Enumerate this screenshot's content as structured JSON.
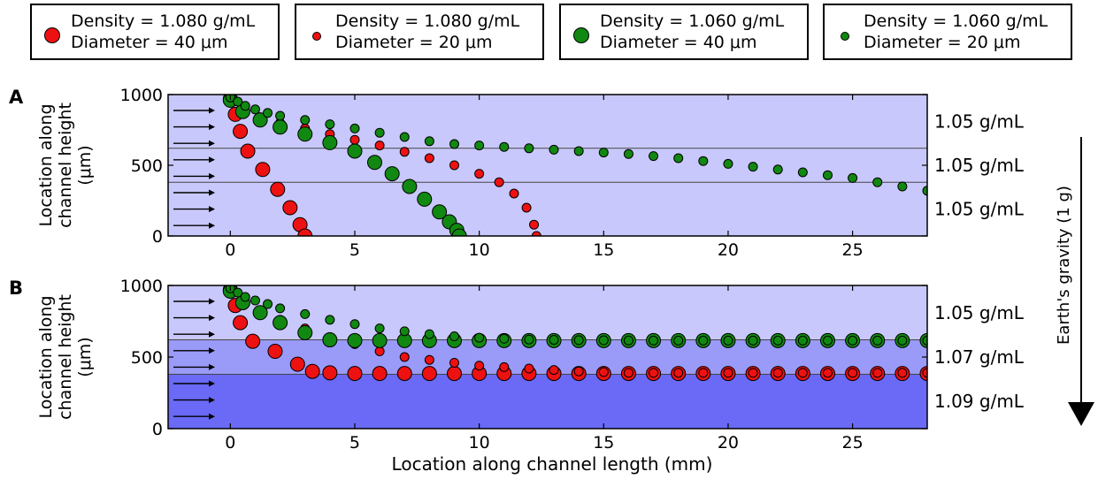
{
  "legend": [
    {
      "line1": "Density = 1.080 g/mL",
      "line2": "Diameter = 40 μm",
      "color": "#ee1111",
      "size": "large"
    },
    {
      "line1": "Density = 1.080 g/mL",
      "line2": "Diameter = 20 μm",
      "color": "#ee1111",
      "size": "small"
    },
    {
      "line1": "Density = 1.060 g/mL",
      "line2": "Diameter = 40 μm",
      "color": "#118811",
      "size": "large"
    },
    {
      "line1": "Density = 1.060 g/mL",
      "line2": "Diameter = 20 μm",
      "color": "#118811",
      "size": "small"
    }
  ],
  "gravity_label": "Earth's gravity (1 g)",
  "chart_data": [
    {
      "type": "scatter",
      "panel_label": "A",
      "xlabel": "",
      "ylabel": "Location along channel height (μm)",
      "xlim": [
        -2.5,
        28
      ],
      "ylim": [
        0,
        1000
      ],
      "x_ticks": [
        0,
        5,
        10,
        15,
        20,
        25
      ],
      "y_ticks": [
        0,
        500,
        1000
      ],
      "layers": [
        {
          "from": 620,
          "to": 1000,
          "label": "1.05 g/mL",
          "color": "#c8c8fc"
        },
        {
          "from": 380,
          "to": 620,
          "label": "1.05 g/mL",
          "color": "#c8c8fc"
        },
        {
          "from": 0,
          "to": 380,
          "label": "1.05 g/mL",
          "color": "#c8c8fc"
        }
      ],
      "boundaries": [
        620,
        380
      ],
      "series": [
        {
          "color": "#ee1111",
          "size": "large",
          "points": [
            [
              0,
              970
            ],
            [
              0.2,
              860
            ],
            [
              0.4,
              740
            ],
            [
              0.7,
              600
            ],
            [
              1.3,
              470
            ],
            [
              1.9,
              330
            ],
            [
              2.4,
              200
            ],
            [
              2.8,
              80
            ],
            [
              3.0,
              0
            ]
          ]
        },
        {
          "color": "#ee1111",
          "size": "small",
          "points": [
            [
              0,
              960
            ],
            [
              0.5,
              880
            ],
            [
              1.2,
              840
            ],
            [
              2,
              800
            ],
            [
              3,
              760
            ],
            [
              4,
              720
            ],
            [
              5,
              680
            ],
            [
              6,
              640
            ],
            [
              7,
              595
            ],
            [
              8,
              550
            ],
            [
              9,
              500
            ],
            [
              10,
              440
            ],
            [
              10.8,
              380
            ],
            [
              11.4,
              300
            ],
            [
              11.9,
              200
            ],
            [
              12.2,
              80
            ],
            [
              12.3,
              0
            ]
          ]
        },
        {
          "color": "#118811",
          "size": "large",
          "points": [
            [
              0,
              960
            ],
            [
              0.5,
              880
            ],
            [
              1.2,
              820
            ],
            [
              2,
              770
            ],
            [
              3,
              720
            ],
            [
              4,
              660
            ],
            [
              5,
              600
            ],
            [
              5.8,
              520
            ],
            [
              6.5,
              440
            ],
            [
              7.2,
              350
            ],
            [
              7.8,
              260
            ],
            [
              8.4,
              170
            ],
            [
              8.8,
              100
            ],
            [
              9.1,
              40
            ],
            [
              9.2,
              0
            ]
          ]
        },
        {
          "color": "#118811",
          "size": "small",
          "points": [
            [
              0,
              980
            ],
            [
              0.3,
              950
            ],
            [
              0.6,
              920
            ],
            [
              1,
              895
            ],
            [
              1.5,
              870
            ],
            [
              2,
              850
            ],
            [
              3,
              820
            ],
            [
              4,
              790
            ],
            [
              5,
              760
            ],
            [
              6,
              730
            ],
            [
              7,
              700
            ],
            [
              8,
              670
            ],
            [
              9,
              650
            ],
            [
              10,
              640
            ],
            [
              11,
              630
            ],
            [
              12,
              620
            ],
            [
              13,
              610
            ],
            [
              14,
              600
            ],
            [
              15,
              590
            ],
            [
              16,
              580
            ],
            [
              17,
              565
            ],
            [
              18,
              550
            ],
            [
              19,
              530
            ],
            [
              20,
              510
            ],
            [
              21,
              490
            ],
            [
              22,
              470
            ],
            [
              23,
              450
            ],
            [
              24,
              430
            ],
            [
              25,
              410
            ],
            [
              26,
              380
            ],
            [
              27,
              350
            ],
            [
              28,
              320
            ]
          ]
        }
      ]
    },
    {
      "type": "scatter",
      "panel_label": "B",
      "xlabel": "Location along channel length (mm)",
      "ylabel": "Location along channel height (μm)",
      "xlim": [
        -2.5,
        28
      ],
      "ylim": [
        0,
        1000
      ],
      "x_ticks": [
        0,
        5,
        10,
        15,
        20,
        25
      ],
      "y_ticks": [
        0,
        500,
        1000
      ],
      "layers": [
        {
          "from": 620,
          "to": 1000,
          "label": "1.05 g/mL",
          "color": "#c8c8fc"
        },
        {
          "from": 380,
          "to": 620,
          "label": "1.07 g/mL",
          "color": "#9a9af8"
        },
        {
          "from": 0,
          "to": 380,
          "label": "1.09 g/mL",
          "color": "#6a6af6"
        }
      ],
      "boundaries": [
        620,
        380
      ],
      "series": [
        {
          "color": "#ee1111",
          "size": "large",
          "points": [
            [
              0,
              970
            ],
            [
              0.2,
              860
            ],
            [
              0.4,
              740
            ],
            [
              0.9,
              610
            ],
            [
              1.8,
              540
            ],
            [
              2.7,
              450
            ],
            [
              3.3,
              400
            ],
            [
              4,
              390
            ],
            [
              5,
              385
            ],
            [
              6,
              385
            ],
            [
              7,
              385
            ],
            [
              8,
              385
            ],
            [
              9,
              385
            ],
            [
              10,
              385
            ],
            [
              11,
              385
            ],
            [
              12,
              385
            ],
            [
              13,
              385
            ],
            [
              14,
              385
            ],
            [
              15,
              385
            ],
            [
              16,
              385
            ],
            [
              17,
              385
            ],
            [
              18,
              385
            ],
            [
              19,
              385
            ],
            [
              20,
              385
            ],
            [
              21,
              385
            ],
            [
              22,
              385
            ],
            [
              23,
              385
            ],
            [
              24,
              385
            ],
            [
              25,
              385
            ],
            [
              26,
              385
            ],
            [
              27,
              385
            ],
            [
              28,
              385
            ]
          ]
        },
        {
          "color": "#ee1111",
          "size": "small",
          "points": [
            [
              0,
              960
            ],
            [
              0.5,
              870
            ],
            [
              1.2,
              810
            ],
            [
              2,
              760
            ],
            [
              3,
              700
            ],
            [
              4,
              640
            ],
            [
              5,
              590
            ],
            [
              6,
              540
            ],
            [
              7,
              500
            ],
            [
              8,
              480
            ],
            [
              9,
              460
            ],
            [
              10,
              440
            ],
            [
              11,
              430
            ],
            [
              12,
              420
            ],
            [
              13,
              410
            ],
            [
              14,
              400
            ],
            [
              15,
              395
            ],
            [
              16,
              390
            ],
            [
              17,
              390
            ],
            [
              18,
              390
            ],
            [
              19,
              390
            ],
            [
              20,
              390
            ],
            [
              21,
              390
            ],
            [
              22,
              390
            ],
            [
              23,
              390
            ],
            [
              24,
              390
            ],
            [
              25,
              390
            ],
            [
              26,
              390
            ],
            [
              27,
              390
            ],
            [
              28,
              390
            ]
          ]
        },
        {
          "color": "#118811",
          "size": "large",
          "points": [
            [
              0,
              960
            ],
            [
              0.5,
              880
            ],
            [
              1.2,
              810
            ],
            [
              2,
              740
            ],
            [
              3,
              670
            ],
            [
              4,
              620
            ],
            [
              5,
              615
            ],
            [
              6,
              615
            ],
            [
              7,
              615
            ],
            [
              8,
              615
            ],
            [
              9,
              615
            ],
            [
              10,
              615
            ],
            [
              11,
              615
            ],
            [
              12,
              615
            ],
            [
              13,
              615
            ],
            [
              14,
              615
            ],
            [
              15,
              615
            ],
            [
              16,
              615
            ],
            [
              17,
              615
            ],
            [
              18,
              615
            ],
            [
              19,
              615
            ],
            [
              20,
              615
            ],
            [
              21,
              615
            ],
            [
              22,
              615
            ],
            [
              23,
              615
            ],
            [
              24,
              615
            ],
            [
              25,
              615
            ],
            [
              26,
              615
            ],
            [
              27,
              615
            ],
            [
              28,
              615
            ]
          ]
        },
        {
          "color": "#118811",
          "size": "small",
          "points": [
            [
              0,
              980
            ],
            [
              0.3,
              950
            ],
            [
              0.6,
              920
            ],
            [
              1,
              895
            ],
            [
              1.5,
              870
            ],
            [
              2,
              840
            ],
            [
              3,
              800
            ],
            [
              4,
              760
            ],
            [
              5,
              730
            ],
            [
              6,
              700
            ],
            [
              7,
              680
            ],
            [
              8,
              660
            ],
            [
              9,
              645
            ],
            [
              10,
              635
            ],
            [
              11,
              628
            ],
            [
              12,
              622
            ],
            [
              13,
              620
            ],
            [
              14,
              618
            ],
            [
              15,
              617
            ],
            [
              16,
              616
            ],
            [
              17,
              615
            ],
            [
              18,
              615
            ],
            [
              19,
              615
            ],
            [
              20,
              615
            ],
            [
              21,
              615
            ],
            [
              22,
              615
            ],
            [
              23,
              615
            ],
            [
              24,
              615
            ],
            [
              25,
              615
            ],
            [
              26,
              615
            ],
            [
              27,
              615
            ],
            [
              28,
              615
            ]
          ]
        }
      ]
    }
  ]
}
